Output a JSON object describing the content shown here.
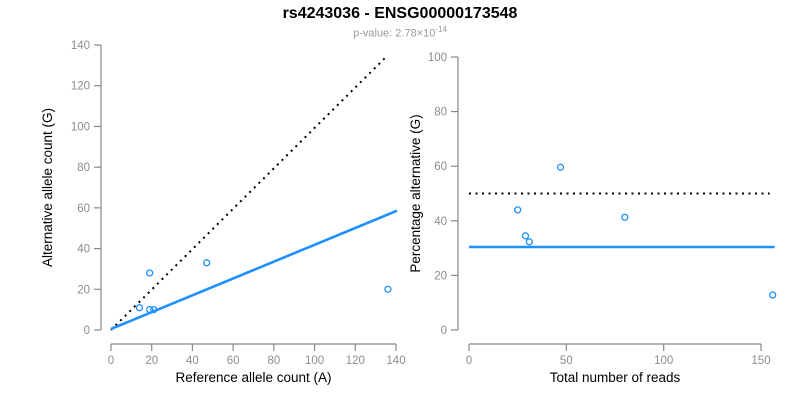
{
  "header": {
    "title": "rs4243036 - ENSG00000173548",
    "subtitle_base": "p-value: 2.78×10",
    "subtitle_exponent": "-14"
  },
  "palette": {
    "point_blue": "#1E90FF",
    "fit_line_blue": "#1E90FF",
    "reference_dotted_black": "#000000",
    "axis_line_gray": "#888888",
    "tick_label_gray": "#8c8c8c",
    "axis_title_black": "#000000",
    "background": "#ffffff"
  },
  "chart_data": [
    {
      "type": "scatter",
      "name": "allele-counts-scatter",
      "xlabel": "Reference allele count (A)",
      "ylabel": "Alternative allele count (G)",
      "xlim": [
        0,
        140
      ],
      "ylim": [
        0,
        140
      ],
      "xticks": [
        0,
        20,
        40,
        60,
        80,
        100,
        120,
        140
      ],
      "yticks": [
        0,
        20,
        40,
        60,
        80,
        100,
        120,
        140
      ],
      "grid": false,
      "legend": "none",
      "points": [
        {
          "x": 14,
          "y": 11
        },
        {
          "x": 19,
          "y": 10
        },
        {
          "x": 21,
          "y": 10
        },
        {
          "x": 19,
          "y": 28
        },
        {
          "x": 47,
          "y": 33
        },
        {
          "x": 136,
          "y": 20
        }
      ],
      "lines": [
        {
          "name": "fifty-percent-reference-line",
          "style": "dotted",
          "color_key": "reference_dotted_black",
          "x1": 0,
          "y1": 0,
          "x2": 135.5,
          "y2": 134.5
        },
        {
          "name": "fitted-line",
          "style": "solid",
          "color_key": "fit_line_blue",
          "x1": 0,
          "y1": 0.5,
          "x2": 140.5,
          "y2": 58.6
        }
      ]
    },
    {
      "type": "scatter",
      "name": "percentage-vs-reads-scatter",
      "xlabel": "Total number of reads",
      "ylabel": "Percentage alternative (G)",
      "xlim": [
        0,
        150
      ],
      "ylim": [
        0,
        100
      ],
      "xticks": [
        0,
        50,
        100,
        150
      ],
      "yticks": [
        0,
        20,
        40,
        60,
        80,
        100
      ],
      "grid": false,
      "legend": "none",
      "points": [
        {
          "x": 25,
          "y": 44
        },
        {
          "x": 29,
          "y": 34.5
        },
        {
          "x": 31,
          "y": 32.3
        },
        {
          "x": 47,
          "y": 59.6
        },
        {
          "x": 80,
          "y": 41.3
        },
        {
          "x": 156,
          "y": 12.8
        }
      ],
      "lines": [
        {
          "name": "fifty-percent-reference-line",
          "style": "dotted",
          "color_key": "reference_dotted_black",
          "x1": 0,
          "y1": 50,
          "x2": 154.5,
          "y2": 50
        },
        {
          "name": "overall-percentage-line",
          "style": "solid",
          "color_key": "fit_line_blue",
          "x1": 0,
          "y1": 30.4,
          "x2": 157,
          "y2": 30.4
        }
      ]
    }
  ]
}
